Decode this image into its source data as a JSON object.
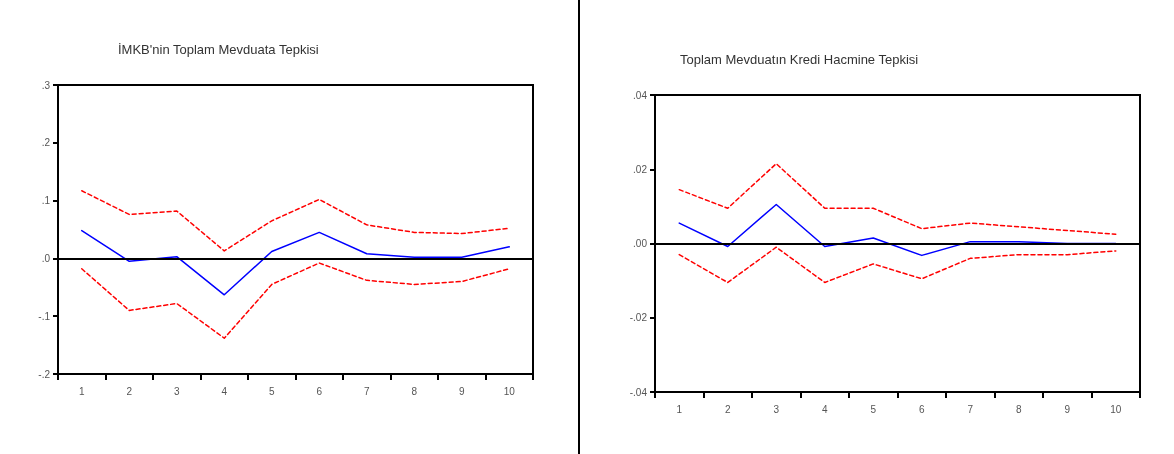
{
  "chart_data": [
    {
      "type": "line",
      "title": "İMKB'nin Toplam Mevduata Tepkisi",
      "categories": [
        "1",
        "2",
        "3",
        "4",
        "5",
        "6",
        "7",
        "8",
        "9",
        "10"
      ],
      "series": [
        {
          "color": "#0000ff",
          "line_style": "solid",
          "values": [
            0.048,
            -0.005,
            0.003,
            -0.063,
            0.012,
            0.045,
            0.008,
            0.002,
            0.002,
            0.02
          ]
        },
        {
          "color": "#ff0000",
          "line_style": "dashed",
          "values": [
            0.117,
            0.076,
            0.082,
            0.013,
            0.065,
            0.102,
            0.058,
            0.045,
            0.043,
            0.052
          ]
        },
        {
          "color": "#ff0000",
          "line_style": "dashed",
          "values": [
            -0.018,
            -0.09,
            -0.078,
            -0.138,
            -0.045,
            -0.008,
            -0.038,
            -0.045,
            -0.04,
            -0.018
          ]
        }
      ],
      "ylim": [
        -0.2,
        0.3
      ],
      "yticks": [
        {
          "value": -0.2,
          "label": "-.2"
        },
        {
          "value": -0.1,
          "label": "-.1"
        },
        {
          "value": 0,
          "label": ".0"
        },
        {
          "value": 0.1,
          "label": ".1"
        },
        {
          "value": 0.2,
          "label": ".2"
        },
        {
          "value": 0.3,
          "label": ".3"
        }
      ],
      "ref_lines": [
        {
          "axis": "y",
          "value": 0,
          "color": "#000000"
        }
      ],
      "grid": false,
      "marker": "none"
    },
    {
      "type": "line",
      "title": "Toplam Mevduatın Kredi Hacmine Tepkisi",
      "categories": [
        "1",
        "2",
        "3",
        "4",
        "5",
        "6",
        "7",
        "8",
        "9",
        "10"
      ],
      "series": [
        {
          "color": "#0000ff",
          "line_style": "solid",
          "values": [
            0.0055,
            -0.0008,
            0.0105,
            -0.0008,
            0.0015,
            -0.0032,
            0.0005,
            0.0005,
            0,
            0
          ]
        },
        {
          "color": "#ff0000",
          "line_style": "dashed",
          "values": [
            0.0145,
            0.0095,
            0.0215,
            0.0095,
            0.0095,
            0.004,
            0.0055,
            0.0045,
            0.0035,
            0.0025
          ]
        },
        {
          "color": "#ff0000",
          "line_style": "dashed",
          "values": [
            -0.003,
            -0.0105,
            -0.001,
            -0.0105,
            -0.0055,
            -0.0095,
            -0.004,
            -0.003,
            -0.003,
            -0.002
          ]
        }
      ],
      "ylim": [
        -0.04,
        0.04
      ],
      "yticks": [
        {
          "value": -0.04,
          "label": "-.04"
        },
        {
          "value": -0.02,
          "label": "-.02"
        },
        {
          "value": 0,
          "label": ".00"
        },
        {
          "value": 0.02,
          "label": ".02"
        },
        {
          "value": 0.04,
          "label": ".04"
        }
      ],
      "ref_lines": [
        {
          "axis": "y",
          "value": 0,
          "color": "#000000"
        }
      ],
      "grid": false,
      "marker": "none"
    }
  ]
}
